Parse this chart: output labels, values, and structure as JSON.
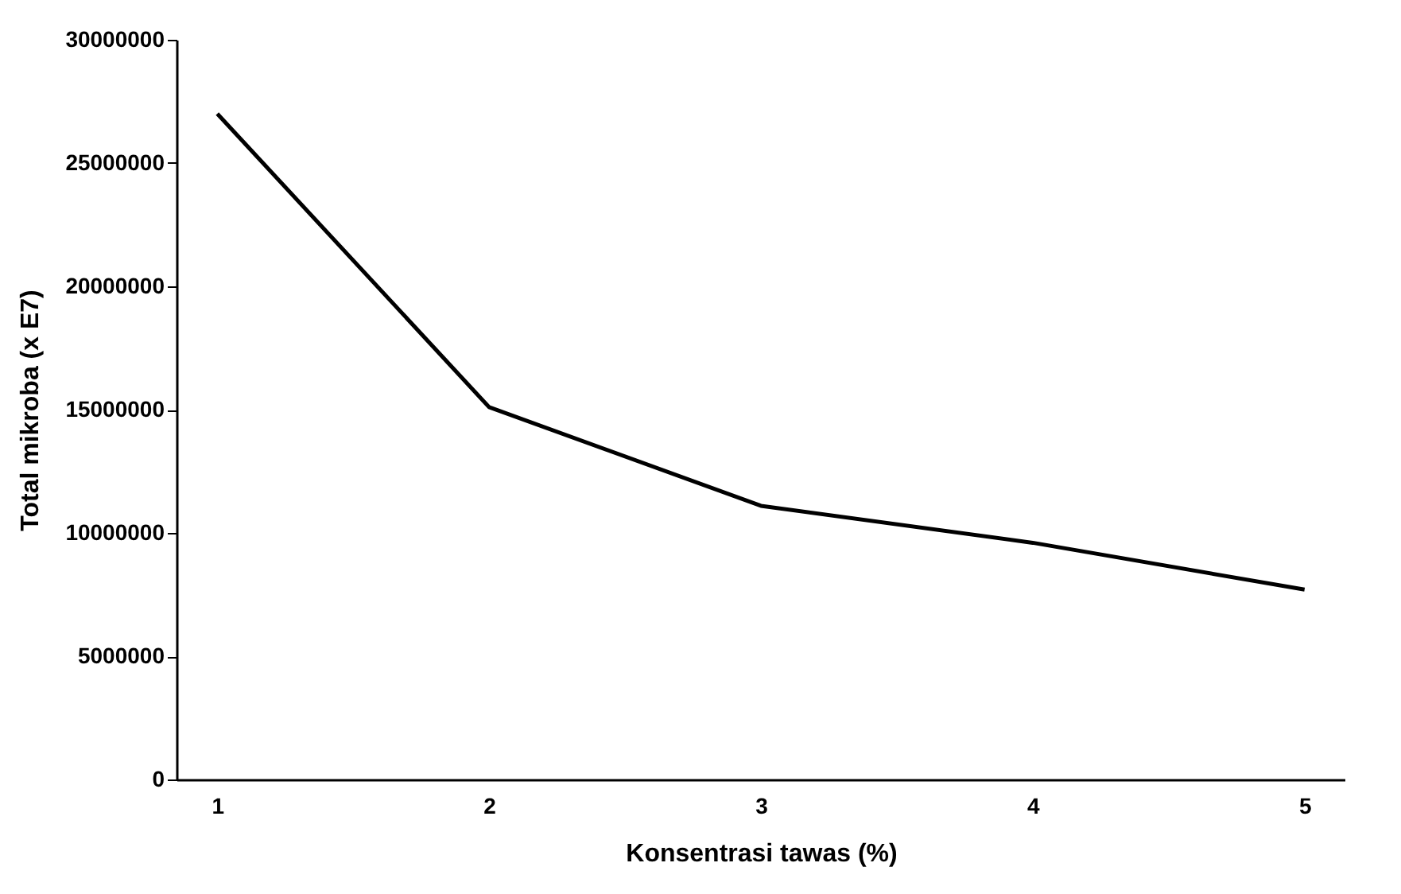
{
  "chart_data": {
    "type": "line",
    "xlabel": "Konsentrasi tawas (%)",
    "ylabel": "Total mikroba (x E7)",
    "categories": [
      "1",
      "2",
      "3",
      "4",
      "5"
    ],
    "series": [
      {
        "color": "#000000",
        "values": [
          27000000,
          15100000,
          11100000,
          9600000,
          7700000
        ]
      }
    ],
    "ylim": [
      0,
      30000000
    ],
    "yticks": [
      0,
      5000000,
      10000000,
      15000000,
      20000000,
      25000000,
      30000000
    ],
    "grid": false,
    "legend": false,
    "marker": "none",
    "line_style": "solid"
  }
}
